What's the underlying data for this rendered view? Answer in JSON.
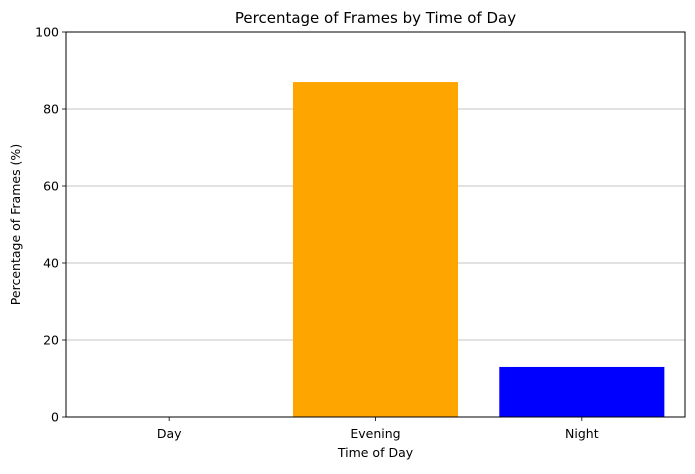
{
  "chart_data": {
    "type": "bar",
    "title": "Percentage of Frames by Time of Day",
    "xlabel": "Time of Day",
    "ylabel": "Percentage of Frames (%)",
    "categories": [
      "Day",
      "Evening",
      "Night"
    ],
    "values": [
      0,
      87,
      13
    ],
    "colors": [
      "#1f77b4",
      "#ffa500",
      "#0000ff"
    ],
    "ylim": [
      0,
      100
    ],
    "yticks": [
      0,
      20,
      40,
      60,
      80,
      100
    ],
    "grid": "y-axis gridlines on",
    "legend": "none"
  }
}
